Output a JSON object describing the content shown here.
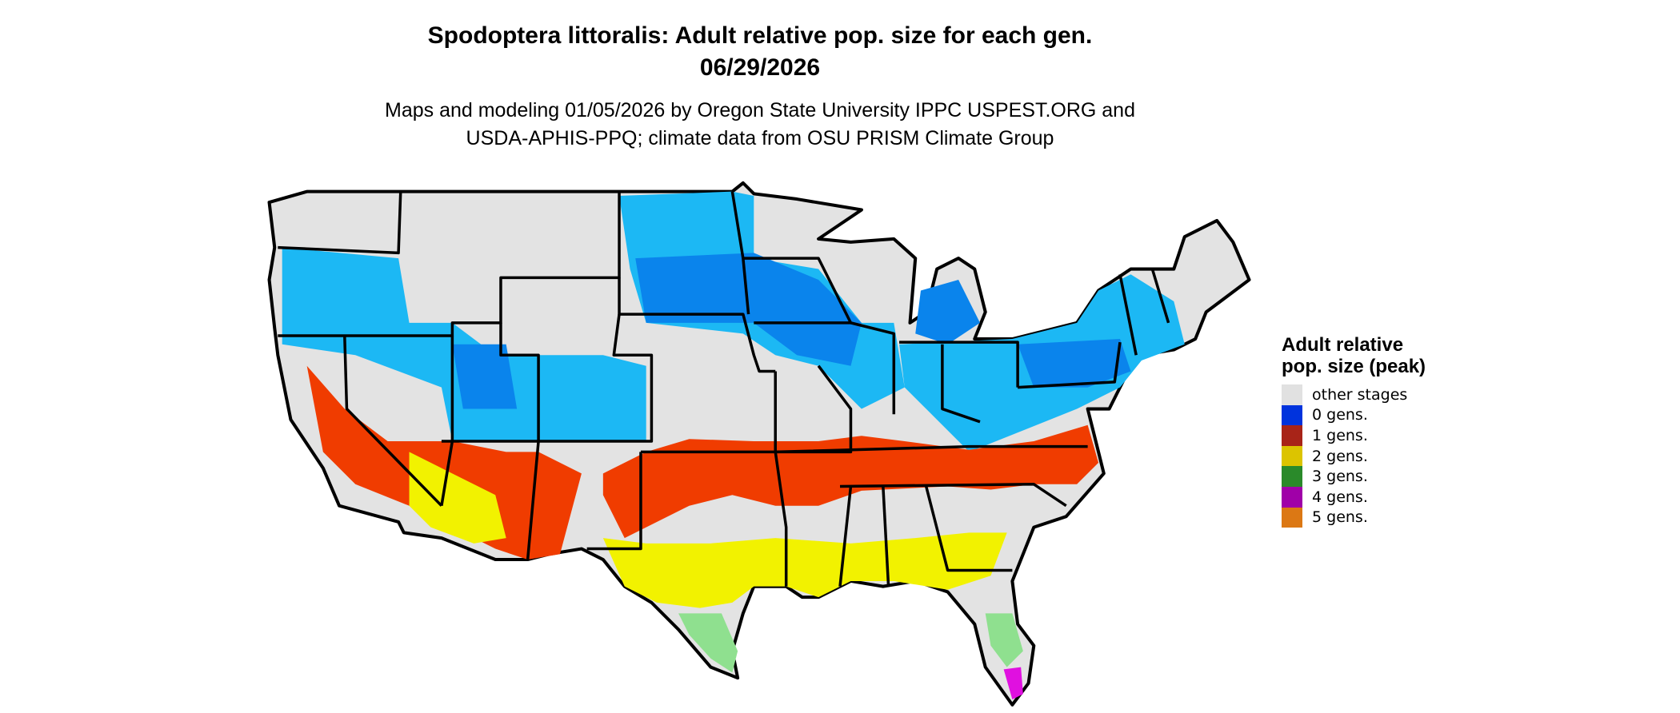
{
  "title": {
    "line1": "Spodoptera littoralis: Adult relative pop. size for each gen.",
    "line2": "06/29/2026"
  },
  "subtitle": {
    "line1": "Maps and modeling 01/05/2026 by Oregon State University IPPC USPEST.ORG and",
    "line2": "USDA-APHIS-PPQ; climate data from OSU PRISM Climate Group"
  },
  "legend": {
    "title": "Adult relative pop. size (peak)",
    "items": [
      {
        "label": "other stages",
        "color": "#e1e1e1"
      },
      {
        "label": "0 gens.",
        "color": "#0033dd"
      },
      {
        "label": "1 gens.",
        "color": "#a82418"
      },
      {
        "label": "2 gens.",
        "color": "#dcc400"
      },
      {
        "label": "3 gens.",
        "color": "#2a8a2a"
      },
      {
        "label": "4 gens.",
        "color": "#a000a8"
      },
      {
        "label": "5 gens.",
        "color": "#dc7814"
      }
    ]
  },
  "map_colors": {
    "background_land": "#e3e3e3",
    "light_blue": "#1cb8f4",
    "mid_blue": "#0a84ec",
    "red_orange": "#f03c00",
    "yellow": "#f2f200",
    "light_green": "#8fe08f",
    "magenta": "#e010e0",
    "border": "#000000"
  }
}
